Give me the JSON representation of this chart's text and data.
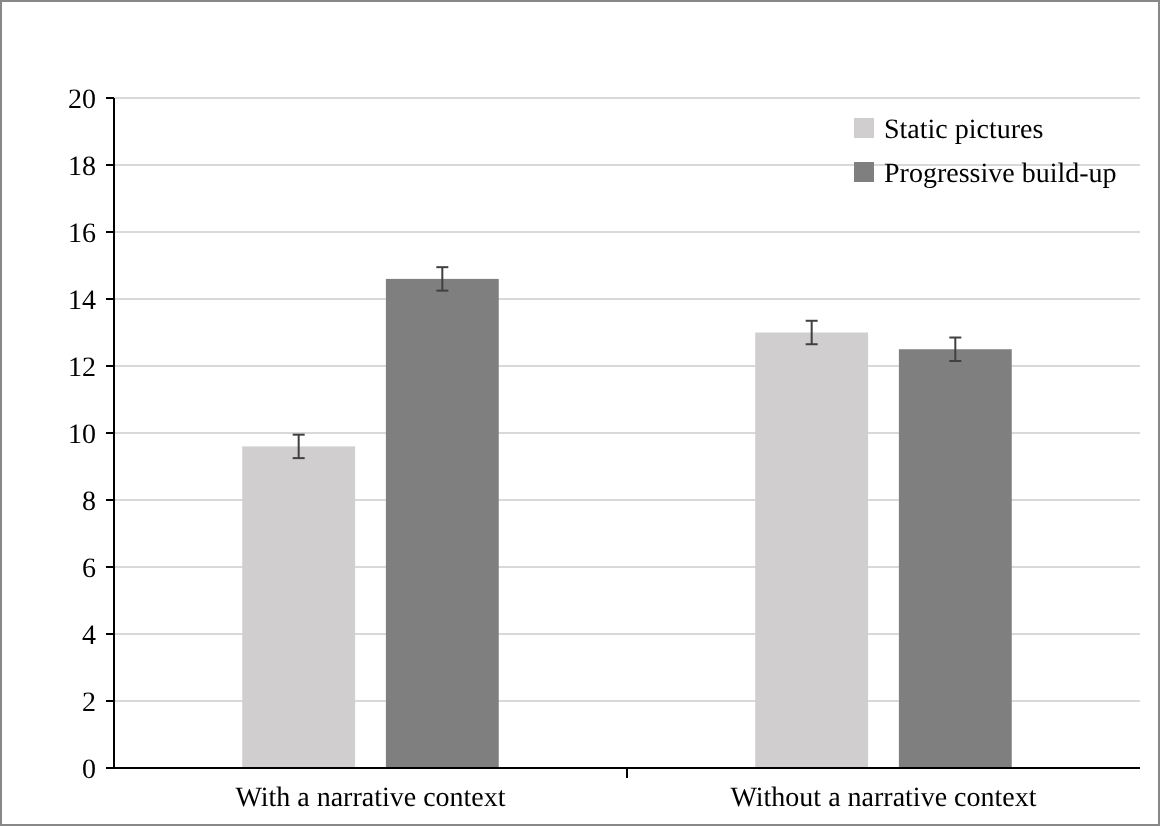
{
  "chart_data": {
    "type": "bar",
    "categories": [
      "With a narrative context",
      "Without a narrative context"
    ],
    "series": [
      {
        "name": "Static pictures",
        "color": "#d0cecf",
        "values": [
          9.6,
          13.0
        ],
        "errors": [
          0.35,
          0.35
        ]
      },
      {
        "name": "Progressive build-up",
        "color": "#7f7f7f",
        "values": [
          14.6,
          12.5
        ],
        "errors": [
          0.35,
          0.35
        ]
      }
    ],
    "ylim": [
      0,
      20
    ],
    "yticks": [
      0,
      2,
      4,
      6,
      8,
      10,
      12,
      14,
      16,
      18,
      20
    ],
    "grid": "y",
    "legend": "top right"
  }
}
